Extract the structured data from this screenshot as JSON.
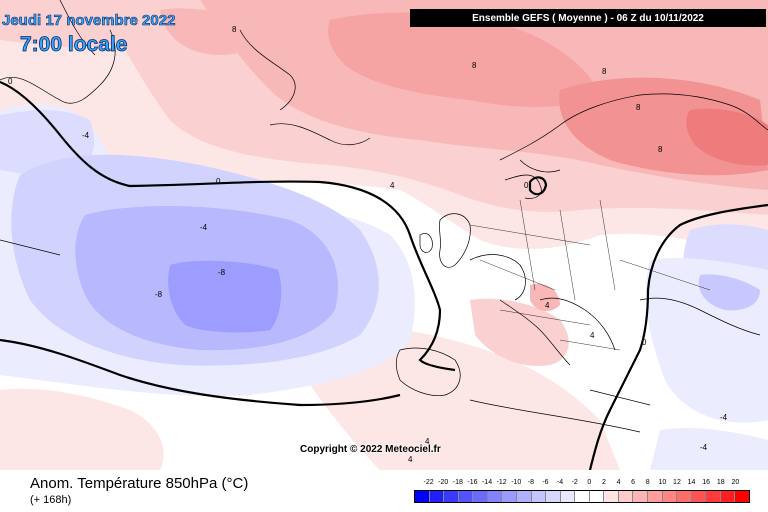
{
  "header": {
    "date": "Jeudi 17 novembre 2022",
    "time": "7:00 locale",
    "run": "Ensemble GEFS  ( Moyenne )  -  06 Z du 10/11/2022"
  },
  "map": {
    "copyright": "Copyright © 2022 Meteociel.fr",
    "contour_labels": [
      "-8",
      "-8",
      "-4",
      "-4",
      "0",
      "0",
      "0",
      "0",
      "4",
      "4",
      "4",
      "4",
      "4",
      "-4",
      "-4",
      "8",
      "8",
      "8",
      "8",
      "8"
    ],
    "colors": {
      "ocean_white": "#ffffff",
      "land_border": "#000000",
      "zero_isotherm": "#000000"
    }
  },
  "footer": {
    "parameter": "Anom. Température 850hPa (°C)",
    "lead": "(+ 168h)"
  },
  "legend": {
    "labels": [
      "-22",
      "-20",
      "-18",
      "-16",
      "-14",
      "-12",
      "-10",
      "-8",
      "-6",
      "-4",
      "-2",
      "0",
      "2",
      "4",
      "6",
      "8",
      "10",
      "12",
      "14",
      "16",
      "18",
      "20"
    ],
    "colors": [
      "#0000ff",
      "#2020ff",
      "#3a3aff",
      "#5252ff",
      "#6a6aff",
      "#8282ff",
      "#9a9aff",
      "#b0b0ff",
      "#c4c4ff",
      "#d6d6ff",
      "#e8e8ff",
      "#ffffff",
      "#ffffff",
      "#ffe4e4",
      "#ffcccc",
      "#ffb4b4",
      "#ff9c9c",
      "#ff8484",
      "#ff6c6c",
      "#ff5252",
      "#ff3a3a",
      "#ff1f1f",
      "#ff0000"
    ]
  }
}
